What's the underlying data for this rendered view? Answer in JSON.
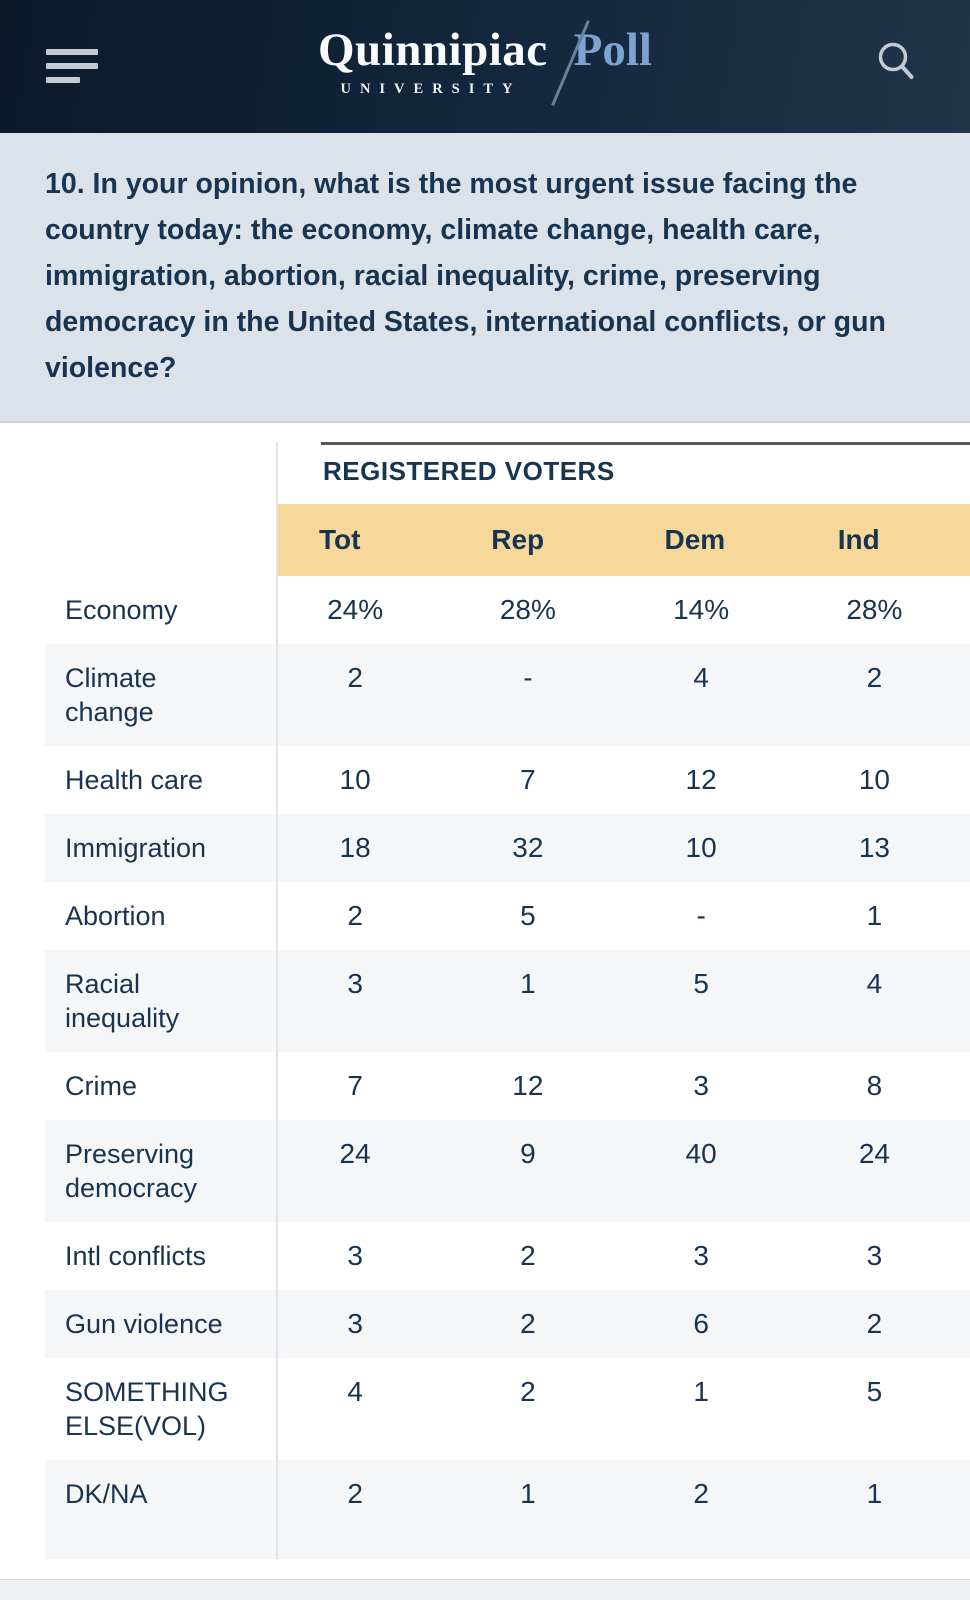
{
  "header": {
    "brand": "Quinnipiac",
    "product": "Poll",
    "subtitle": "UNIVERSITY",
    "menu_icon": "hamburger-icon",
    "search_icon": "search-icon"
  },
  "question": {
    "text": "10. In your opinion, what is the most urgent issue facing the country today: the economy, climate change, health care, immigration, abortion, racial inequality, crime, preserving democracy in the United States, international conflicts, or gun violence?"
  },
  "table": {
    "group_header": "REGISTERED VOTERS",
    "columns": [
      "Tot",
      "Rep",
      "Dem",
      "Ind"
    ],
    "rows": [
      {
        "label": "Economy",
        "values": [
          "24%",
          "28%",
          "14%",
          "28%"
        ]
      },
      {
        "label": "Climate change",
        "values": [
          "2",
          "-",
          "4",
          "2"
        ]
      },
      {
        "label": "Health care",
        "values": [
          "10",
          "7",
          "12",
          "10"
        ]
      },
      {
        "label": "Immigration",
        "values": [
          "18",
          "32",
          "10",
          "13"
        ]
      },
      {
        "label": "Abortion",
        "values": [
          "2",
          "5",
          "-",
          "1"
        ]
      },
      {
        "label": "Racial inequality",
        "values": [
          "3",
          "1",
          "5",
          "4"
        ]
      },
      {
        "label": "Crime",
        "values": [
          "7",
          "12",
          "3",
          "8"
        ]
      },
      {
        "label": "Preserving democracy",
        "values": [
          "24",
          "9",
          "40",
          "24"
        ]
      },
      {
        "label": "Intl conflicts",
        "values": [
          "3",
          "2",
          "3",
          "3"
        ]
      },
      {
        "label": "Gun violence",
        "values": [
          "3",
          "2",
          "6",
          "2"
        ]
      },
      {
        "label": "SOMETHING ELSE(VOL)",
        "values": [
          "4",
          "2",
          "1",
          "5"
        ]
      },
      {
        "label": "DK/NA",
        "values": [
          "2",
          "1",
          "2",
          "1"
        ]
      }
    ]
  },
  "colors": {
    "header_bg": "#13273e",
    "header_bg_left": "#0c1a2a",
    "header_bg_right": "#223448",
    "brand_white": "#fafbfc",
    "poll_blue": "#7ea3d2",
    "icon_gray": "#c2cbd3",
    "question_bg": "#dbe2e9",
    "navy_text": "#183451",
    "rule_dark": "#54575b",
    "gold": "#f6d99a",
    "stripe": "#f5f6f8",
    "divider": "#e0e2e5",
    "footer_bg": "#edeff3"
  }
}
